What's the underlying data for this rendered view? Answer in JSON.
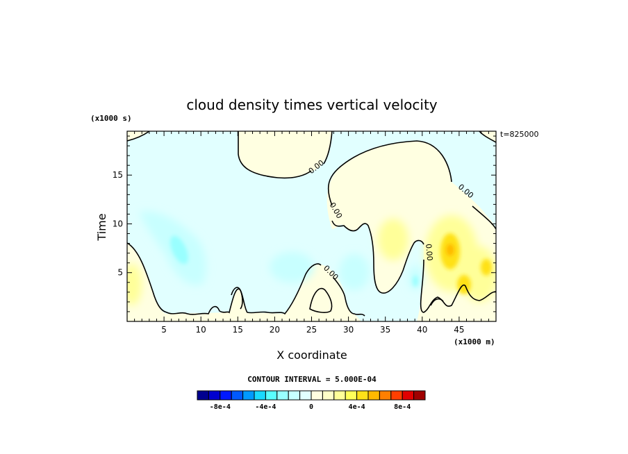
{
  "chart_data": {
    "type": "heatmap",
    "title": "cloud density times vertical velocity",
    "xlabel": "X coordinate",
    "ylabel": "Time",
    "x_unit": "(x1000 m)",
    "y_unit": "(x1000 s)",
    "time_label": "t=825000",
    "contour_interval_label": "CONTOUR INTERVAL = 5.000E-04",
    "xlim": [
      0,
      50
    ],
    "ylim": [
      0,
      19.5
    ],
    "x_ticks": [
      5,
      10,
      15,
      20,
      25,
      30,
      35,
      40,
      45
    ],
    "y_ticks": [
      5,
      10,
      15
    ],
    "contour_label": "0.00",
    "colorbar": {
      "levels": [
        -0.001,
        -0.0009,
        -0.0008,
        -0.0007,
        -0.0006,
        -0.0005,
        -0.0004,
        -0.0003,
        -0.0002,
        -0.0001,
        0,
        0.0001,
        0.0002,
        0.0003,
        0.0004,
        0.0005,
        0.0006,
        0.0007,
        0.0008,
        0.0009,
        0.001
      ],
      "colors": [
        "#00008f",
        "#0000cf",
        "#0019ff",
        "#0059ff",
        "#0099ff",
        "#19d9ff",
        "#59ffff",
        "#99ffff",
        "#c8ffff",
        "#e1ffff",
        "#ffffe1",
        "#ffffc8",
        "#ffff99",
        "#ffff59",
        "#ffe119",
        "#ffb900",
        "#ff7f00",
        "#ff3f00",
        "#e10000",
        "#a00000"
      ],
      "tick_labels": [
        "-8e-4",
        "-4e-4",
        "0",
        "4e-4",
        "8e-4"
      ],
      "tick_values": [
        -0.0008,
        -0.0004,
        0,
        0.0004,
        0.0008
      ]
    },
    "features": [
      {
        "name": "negative background",
        "value": -5e-05
      },
      {
        "name": "positive region upper-middle",
        "x_range": [
          15,
          28
        ],
        "y_range": [
          14.5,
          19.5
        ],
        "value": 5e-05
      },
      {
        "name": "positive region right",
        "x_range": [
          27,
          50
        ],
        "y_range": [
          3,
          19
        ],
        "value": 0.0001
      },
      {
        "name": "positive maximum",
        "x": 43.7,
        "y": 7.3,
        "value": 0.0006
      },
      {
        "name": "negative minimum",
        "x": 8,
        "y": 7.5,
        "value": -0.0002
      }
    ]
  }
}
